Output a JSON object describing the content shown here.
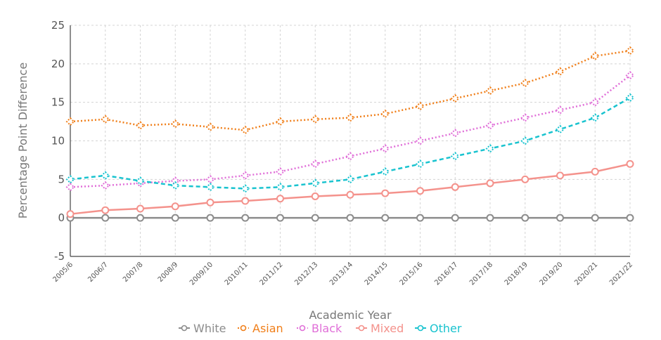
{
  "chart_data": {
    "type": "line",
    "title": "",
    "xlabel": "Academic Year",
    "ylabel": "Percentage Point Difference",
    "ylim": [
      -5,
      25
    ],
    "yticks": [
      -5,
      0,
      5,
      10,
      15,
      20,
      25
    ],
    "grid": true,
    "legend_position": "bottom-center",
    "categories": [
      "2005/6",
      "2006/7",
      "2007/8",
      "2008/9",
      "2009/10",
      "2010/11",
      "2011/12",
      "2012/13",
      "2013/14",
      "2014/15",
      "2015/16",
      "2016/17",
      "2017/18",
      "2018/19",
      "2019/20",
      "2020/21",
      "2021/22"
    ],
    "series": [
      {
        "name": "White",
        "color": "#8c8c8c",
        "style": "solid",
        "marker": "circle",
        "values": [
          0,
          0,
          0,
          0,
          0,
          0,
          0,
          0,
          0,
          0,
          0,
          0,
          0,
          0,
          0,
          0,
          0
        ]
      },
      {
        "name": "Asian",
        "color": "#f07f1a",
        "style": "dotted",
        "marker": "diamond",
        "values": [
          12.5,
          12.8,
          12.0,
          12.2,
          11.8,
          11.4,
          12.5,
          12.8,
          13.0,
          13.5,
          14.5,
          15.5,
          16.5,
          17.5,
          19.0,
          21.0,
          21.7
        ]
      },
      {
        "name": "Black",
        "color": "#e06fd8",
        "style": "dotted",
        "marker": "diamond",
        "values": [
          4.0,
          4.2,
          4.5,
          4.8,
          5.0,
          5.5,
          6.0,
          7.0,
          8.0,
          9.0,
          10.0,
          11.0,
          12.0,
          13.0,
          14.0,
          15.0,
          18.5
        ]
      },
      {
        "name": "Mixed",
        "color": "#f4928c",
        "style": "solid",
        "marker": "circle",
        "values": [
          0.5,
          1.0,
          1.2,
          1.5,
          2.0,
          2.2,
          2.5,
          2.8,
          3.0,
          3.2,
          3.5,
          4.0,
          4.5,
          5.0,
          5.5,
          6.0,
          7.0
        ]
      },
      {
        "name": "Other",
        "color": "#19c3cf",
        "style": "dashed",
        "marker": "diamond",
        "values": [
          5.0,
          5.5,
          4.8,
          4.2,
          4.0,
          3.8,
          4.0,
          4.5,
          5.0,
          6.0,
          7.0,
          8.0,
          9.0,
          10.0,
          11.5,
          13.0,
          15.6
        ]
      }
    ]
  }
}
